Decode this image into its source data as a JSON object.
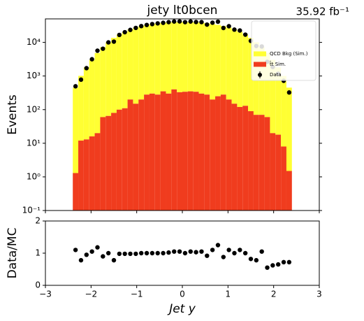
{
  "chart_data": {
    "type": "stacked_histogram",
    "title": "jety  lt0bcen",
    "luminosity": "35.92 fb⁻¹",
    "ylabel": "Events",
    "xlabel": "Jet y",
    "ratio_ylabel": "Data/MC",
    "log_y": true,
    "legend": "upper right",
    "bins": [
      -2.4,
      -2.28,
      -2.16,
      -2.04,
      -1.92,
      -1.8,
      -1.68,
      -1.56,
      -1.44,
      -1.32,
      -1.2,
      -1.08,
      -0.96,
      -0.84,
      -0.72,
      -0.6,
      -0.48,
      -0.36,
      -0.24,
      -0.12,
      0,
      0.12,
      0.24,
      0.36,
      0.48,
      0.6,
      0.72,
      0.84,
      0.96,
      1.08,
      1.2,
      1.32,
      1.44,
      1.56,
      1.68,
      1.8,
      1.92,
      2.04,
      2.16,
      2.28,
      2.4
    ],
    "series": [
      {
        "name": "t̄t Sim.",
        "color": "#f03c1e",
        "values": [
          1.3,
          12,
          13,
          16,
          20,
          60,
          65,
          80,
          100,
          110,
          200,
          150,
          200,
          280,
          300,
          280,
          350,
          300,
          400,
          330,
          340,
          350,
          340,
          300,
          280,
          200,
          250,
          280,
          200,
          150,
          120,
          130,
          90,
          70,
          70,
          60,
          20,
          18,
          8,
          1.5
        ]
      },
      {
        "name": "QCD Bkg (Sim.)",
        "color": "#ffff33",
        "values": [
          450,
          1000,
          1800,
          3000,
          4800,
          7200,
          10000,
          13500,
          17000,
          20500,
          24000,
          27500,
          30500,
          33000,
          35000,
          36800,
          38200,
          39200,
          39800,
          40000,
          40000,
          39800,
          39200,
          38200,
          36800,
          35000,
          33000,
          30500,
          27500,
          24000,
          20500,
          17000,
          13500,
          10000,
          7200,
          4800,
          3000,
          1800,
          1000,
          450
        ]
      },
      {
        "name": "Data",
        "color": "#000000",
        "values": [
          495,
          780,
          1710,
          3150,
          5660,
          6480,
          10000,
          10530,
          16660,
          20090,
          23520,
          26950,
          30500,
          33000,
          35000,
          36800,
          38200,
          39980,
          41790,
          42000,
          40000,
          41790,
          40380,
          40110,
          33860,
          38500,
          41250,
          26840,
          30250,
          24000,
          22550,
          17000,
          11070,
          7800,
          7560,
          2640,
          1860,
          1170,
          720,
          324
        ]
      }
    ],
    "ratio_values": [
      1.1,
      0.78,
      0.95,
      1.05,
      1.18,
      0.9,
      1.0,
      0.78,
      0.98,
      0.98,
      0.98,
      0.98,
      1.0,
      1.0,
      1.0,
      1.0,
      1.0,
      1.02,
      1.05,
      1.05,
      1.0,
      1.05,
      1.03,
      1.05,
      0.92,
      1.1,
      1.25,
      0.88,
      1.1,
      1.0,
      1.1,
      1.0,
      0.82,
      0.78,
      1.05,
      0.55,
      0.62,
      0.65,
      0.72,
      0.72
    ],
    "xlim": [
      -3,
      3
    ],
    "xticks": [
      {
        "value": -3,
        "label": "−3"
      },
      {
        "value": -2,
        "label": "−2"
      },
      {
        "value": -1,
        "label": "−1"
      },
      0,
      1,
      2,
      3
    ],
    "ylim": [
      0.1,
      50000
    ],
    "yticks": [
      {
        "value": 0.1,
        "label": "10⁻¹"
      },
      {
        "value": 1,
        "label": "10⁰"
      },
      {
        "value": 10,
        "label": "10¹"
      },
      {
        "value": 100,
        "label": "10²"
      },
      {
        "value": 1000,
        "label": "10³"
      },
      {
        "value": 10000,
        "label": "10⁴"
      }
    ],
    "ratio_ylim": [
      0,
      2
    ],
    "ratio_yticks": [
      0,
      1,
      2
    ]
  }
}
